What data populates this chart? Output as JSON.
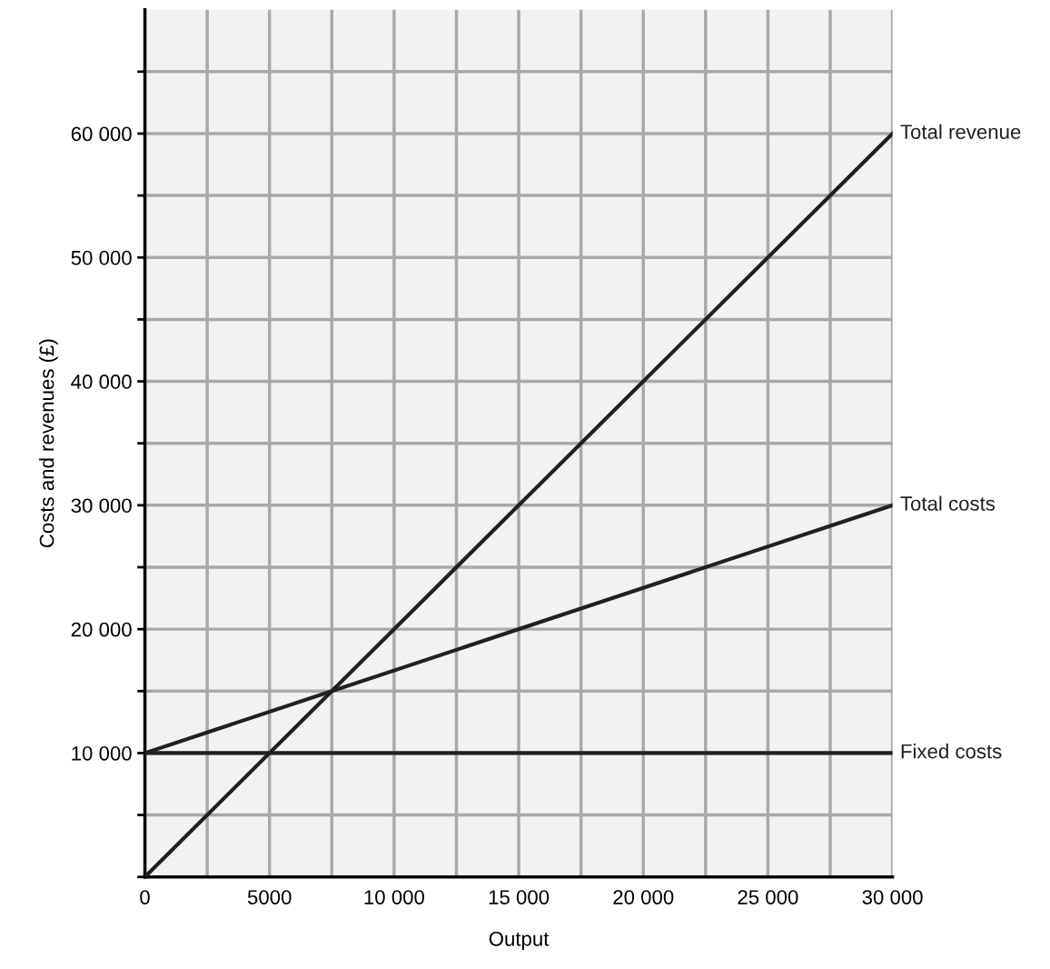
{
  "chart_data": {
    "type": "line",
    "xlabel": "Output",
    "ylabel": "Costs and revenues (£)",
    "x": [
      0,
      30000
    ],
    "series": [
      {
        "name": "Total revenue",
        "color": "#231f20",
        "values": [
          0,
          60000
        ]
      },
      {
        "name": "Total costs",
        "color": "#231f20",
        "values": [
          10000,
          30000
        ]
      },
      {
        "name": "Fixed costs",
        "color": "#231f20",
        "values": [
          10000,
          10000
        ]
      }
    ],
    "xlim": [
      0,
      30000
    ],
    "ylim": [
      0,
      70000
    ],
    "xticks": [
      {
        "value": 0,
        "label": "0"
      },
      {
        "value": 2500,
        "label": null
      },
      5000,
      {
        "value": 7500,
        "label": null
      },
      {
        "value": 10000,
        "label": "10 000"
      },
      {
        "value": 12500,
        "label": null
      },
      {
        "value": 15000,
        "label": "15 000"
      },
      {
        "value": 17500,
        "label": null
      },
      {
        "value": 20000,
        "label": "20 000"
      },
      {
        "value": 22500,
        "label": null
      },
      {
        "value": 25000,
        "label": "25 000"
      },
      {
        "value": 27500,
        "label": null
      },
      {
        "value": 30000,
        "label": "30 000"
      }
    ],
    "yticks": [
      {
        "value": 0,
        "label": null
      },
      {
        "value": 5000,
        "label": null
      },
      {
        "value": 10000,
        "label": "10 000"
      },
      {
        "value": 15000,
        "label": null
      },
      {
        "value": 20000,
        "label": "20 000"
      },
      {
        "value": 25000,
        "label": null
      },
      {
        "value": 30000,
        "label": "30 000"
      },
      {
        "value": 35000,
        "label": null
      },
      {
        "value": 40000,
        "label": "40 000"
      },
      {
        "value": 45000,
        "label": null
      },
      {
        "value": 50000,
        "label": "50 000"
      },
      {
        "value": 55000,
        "label": null
      },
      {
        "value": 60000,
        "label": "60 000"
      },
      {
        "value": 65000,
        "label": null
      }
    ],
    "grid": true,
    "legend": false,
    "marker": "none",
    "line_style": "solid"
  }
}
